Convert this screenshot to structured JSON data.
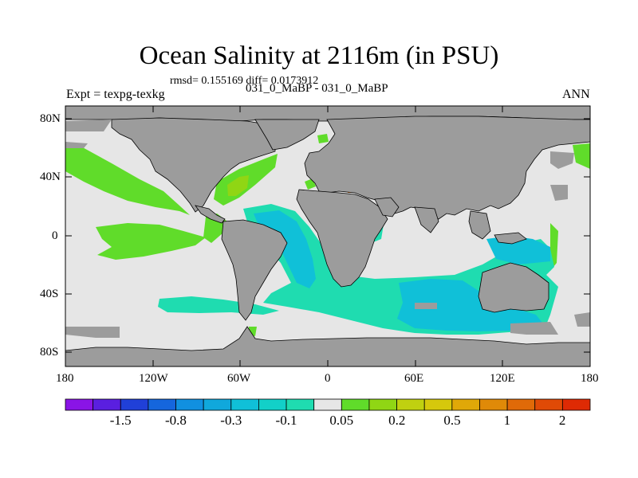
{
  "header": {
    "title": "Ocean Salinity at 2116m (in PSU)",
    "stats": "rmsd= 0.155169 diff= 0.0173912",
    "experiment": "Expt = texpg-texkg",
    "runs": "031_0_MaBP - 031_0_MaBP",
    "season": "ANN"
  },
  "axes": {
    "lat_labels": [
      "80N",
      "40N",
      "0",
      "40S",
      "80S"
    ],
    "lon_labels": [
      "180",
      "120W",
      "60W",
      "0",
      "60E",
      "120E",
      "180"
    ]
  },
  "colorbar": {
    "colors": [
      "#8a14e6",
      "#5a1fe0",
      "#2040d8",
      "#1566dd",
      "#1190e0",
      "#10a8dc",
      "#10c0d8",
      "#12d0c8",
      "#1fdcb0",
      "#e6e6e6",
      "#60dc2a",
      "#90d614",
      "#c0d010",
      "#d6c80c",
      "#e0a808",
      "#e08a08",
      "#e06a08",
      "#e04a06",
      "#de2a04"
    ],
    "labels": [
      "-1.5",
      "-0.8",
      "-0.3",
      "-0.1",
      "0.05",
      "0.2",
      "0.5",
      "1",
      "2"
    ]
  },
  "legend_colors": {
    "land": "#9c9c9c",
    "near_zero": "#e6e6e6",
    "light_green": "#60dc2a",
    "yellow_green": "#90d614",
    "cyan": "#10c0d8",
    "teal": "#1fdcb0",
    "orange": "#e06a08"
  }
}
